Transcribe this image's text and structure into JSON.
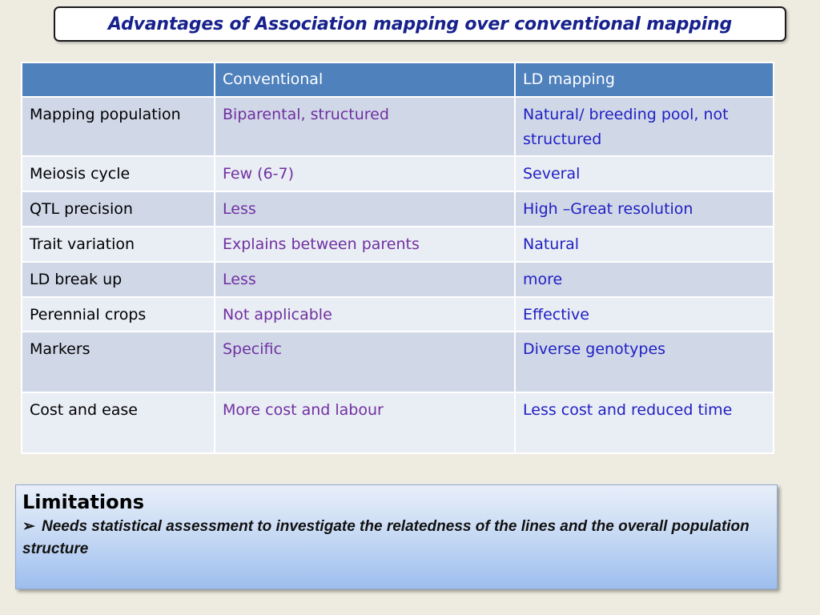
{
  "title": "Advantages of Association mapping over conventional mapping",
  "table": {
    "headers": [
      "",
      "Conventional",
      "LD mapping"
    ],
    "rows": [
      {
        "feature": "Mapping population",
        "conventional": "Biparental, structured",
        "ld": "Natural/ breeding pool, not structured"
      },
      {
        "feature": "Meiosis cycle",
        "conventional": "Few (6-7)",
        "ld": "Several"
      },
      {
        "feature": "QTL precision",
        "conventional": "Less",
        "ld": "High –Great resolution"
      },
      {
        "feature": "Trait variation",
        "conventional": "Explains between parents",
        "ld": "Natural"
      },
      {
        "feature": "LD break up",
        "conventional": "Less",
        "ld": "more"
      },
      {
        "feature": "Perennial crops",
        "conventional": "Not applicable",
        "ld": "Effective"
      },
      {
        "feature": "Markers",
        "conventional": "Specific",
        "ld": "Diverse genotypes"
      },
      {
        "feature": "Cost and ease",
        "conventional": "More cost and labour",
        "ld": "Less cost and reduced time"
      }
    ]
  },
  "limitations": {
    "heading": "Limitations",
    "bullet_icon": "arrow-bullet-icon",
    "bullet_glyph": "➢",
    "items": [
      "Needs statistical assessment to investigate the relatedness of the lines and the overall population structure"
    ]
  },
  "colors": {
    "background": "#EEECE1",
    "title_text": "#17218C",
    "header_fill": "#4F81BD",
    "row_fill_a": "#D0D8E8",
    "row_fill_b": "#E9EDF4",
    "conventional_text": "#7030A0",
    "ld_text": "#1F1FC2"
  }
}
